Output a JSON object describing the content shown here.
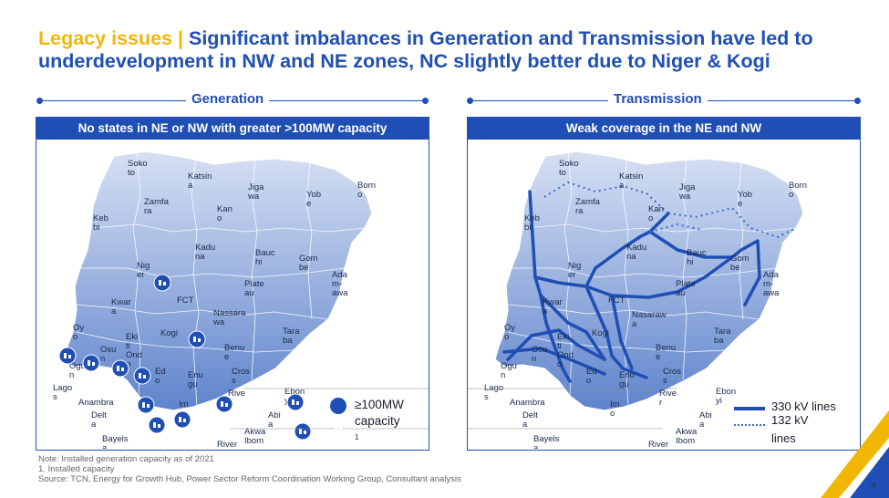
{
  "title": {
    "lead": "Legacy issues |",
    "main": "Significant imbalances in Generation and Transmission have led to underdevelopment in NW and NE zones, NC slightly better due to Niger & Kogi"
  },
  "generation": {
    "section_label": "Generation",
    "header": "No states in NE or NW with greater >100MW capacity",
    "legend_label": "≥100MW capacity",
    "legend_sup": "1",
    "state_labels": [
      "Soko to",
      "Katsin a",
      "Jiga wa",
      "Born o",
      "Yob e",
      "Zamfa ra",
      "Kan o",
      "Keb bi",
      "Kadu na",
      "Bauc hi",
      "Gom be",
      "Ada m- awa",
      "Nig er",
      "Plate au",
      "FCT",
      "Nassara wa",
      "Kwar a",
      "Tara ba",
      "Oy o",
      "Eki ti",
      "Kogi",
      "Osu n",
      "Ond o",
      "Benu e",
      "Ogu n",
      "Ed o",
      "Enu gu",
      "Cros s",
      "Lago s",
      "Anambra",
      "Rive r",
      "Ebon yi",
      "Delt a",
      "Im o",
      "Abi a",
      "Bayels a",
      "Akwa Ibom",
      "River s"
    ]
  },
  "transmission": {
    "section_label": "Transmission",
    "header": "Weak coverage in the NE and NW",
    "legend_330": "330 kV lines",
    "legend_132": "132 kV lines",
    "state_labels": [
      "Soko to",
      "Katsin a",
      "Jiga wa",
      "Born o",
      "Yob e",
      "Zamfa ra",
      "Kan o",
      "Keb bi",
      "Kadu na",
      "Bauc hi",
      "Gom be",
      "Ada m- awa",
      "Nig er",
      "Plate au",
      "FCT",
      "Nasaraw a",
      "Kwar a",
      "Kogi",
      "Tara ba",
      "Oy o",
      "Eki ti",
      "Osu n",
      "Ond o",
      "Benu e",
      "Ogu n",
      "Ed o",
      "Enu gu",
      "Cros s",
      "Lago s",
      "Anambra",
      "Rive r",
      "Ebon yi",
      "Delt a",
      "Im o",
      "Abi a",
      "Bayels a",
      "Akwa Ibom",
      "River s"
    ]
  },
  "footnotes": {
    "note": "Note: Installed generation capacity as of 2021",
    "fn1": "1. Installed capacity",
    "source": "Source: TCN, Energy for Growth Hub, Power Sector Reform Coordination Working Group, Consultant analysis"
  },
  "page_number": "4",
  "colors": {
    "brand_blue": "#1f4eb4",
    "accent_yellow": "#f2b705",
    "map_light": "#cfdaf0",
    "map_dark": "#6d8fd0"
  },
  "icon_names": [
    "power-plant-icon",
    "transmission-line-icon"
  ]
}
